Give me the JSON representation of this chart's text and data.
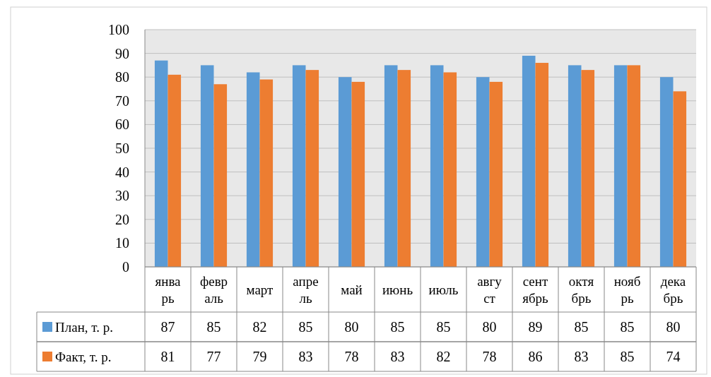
{
  "chart_data": {
    "type": "bar",
    "categories": [
      "январь",
      "февраль",
      "март",
      "апрель",
      "май",
      "июнь",
      "июль",
      "август",
      "сентябрь",
      "октябрь",
      "ноябрь",
      "декабрь"
    ],
    "series": [
      {
        "name": "План, т. р.",
        "color": "#5b9bd5",
        "values": [
          87,
          85,
          82,
          85,
          80,
          85,
          85,
          80,
          89,
          85,
          85,
          80
        ]
      },
      {
        "name": "Факт, т. р.",
        "color": "#ed7d31",
        "values": [
          81,
          77,
          79,
          83,
          78,
          83,
          82,
          78,
          86,
          83,
          85,
          74
        ]
      }
    ],
    "ylim": [
      0,
      100
    ],
    "yticks": [
      0,
      10,
      20,
      30,
      40,
      50,
      60,
      70,
      80,
      90,
      100
    ],
    "grid": "y",
    "legend": "bottom",
    "data_labels": true
  }
}
